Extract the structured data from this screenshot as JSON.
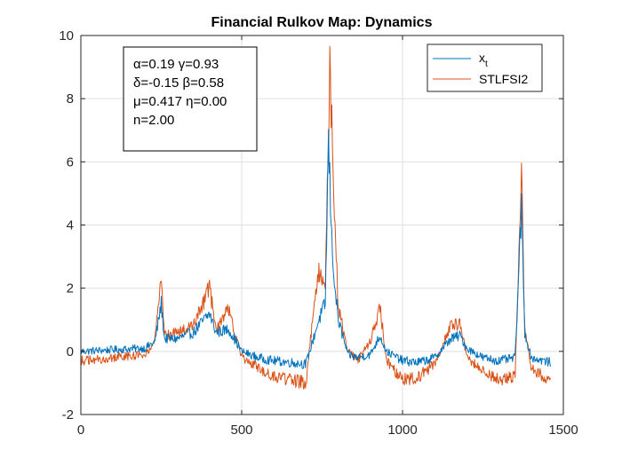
{
  "chart_data": {
    "type": "line",
    "title": "Financial Rulkov Map: Dynamics",
    "xlabel": "",
    "ylabel": "",
    "xlim": [
      0,
      1500
    ],
    "ylim": [
      -2,
      10
    ],
    "xticks": [
      0,
      500,
      1000,
      1500
    ],
    "yticks": [
      -2,
      0,
      2,
      4,
      6,
      8,
      10
    ],
    "grid": true,
    "legend_position": "top-right",
    "annotation_lines": [
      "α=0.19 γ=0.93",
      "δ=-0.15 β=0.58",
      "μ=0.417 η=0.00",
      "n=2.00"
    ],
    "series": [
      {
        "name": "x_t",
        "legend_label": "x",
        "legend_subscript": "t",
        "color": "#0072BD",
        "anchors": [
          [
            0,
            0.0
          ],
          [
            100,
            0.05
          ],
          [
            200,
            0.1
          ],
          [
            230,
            0.3
          ],
          [
            250,
            1.5
          ],
          [
            260,
            0.4
          ],
          [
            300,
            0.4
          ],
          [
            350,
            0.6
          ],
          [
            400,
            1.2
          ],
          [
            420,
            0.6
          ],
          [
            460,
            0.7
          ],
          [
            500,
            0.0
          ],
          [
            550,
            -0.2
          ],
          [
            600,
            -0.3
          ],
          [
            650,
            -0.35
          ],
          [
            700,
            -0.4
          ],
          [
            720,
            0.3
          ],
          [
            740,
            1.0
          ],
          [
            760,
            1.5
          ],
          [
            770,
            6.7
          ],
          [
            780,
            3.5
          ],
          [
            790,
            2.0
          ],
          [
            800,
            1.0
          ],
          [
            830,
            -0.1
          ],
          [
            860,
            -0.2
          ],
          [
            900,
            -0.1
          ],
          [
            930,
            0.5
          ],
          [
            950,
            0.0
          ],
          [
            1000,
            -0.3
          ],
          [
            1050,
            -0.35
          ],
          [
            1100,
            -0.2
          ],
          [
            1150,
            0.4
          ],
          [
            1180,
            0.5
          ],
          [
            1200,
            0.1
          ],
          [
            1250,
            -0.2
          ],
          [
            1300,
            -0.3
          ],
          [
            1350,
            -0.2
          ],
          [
            1370,
            4.5
          ],
          [
            1380,
            0.6
          ],
          [
            1400,
            -0.2
          ],
          [
            1460,
            -0.35
          ]
        ]
      },
      {
        "name": "STLFSI2",
        "legend_label": "STLFSI2",
        "color": "#D95319",
        "anchors": [
          [
            0,
            -0.3
          ],
          [
            100,
            -0.2
          ],
          [
            200,
            -0.1
          ],
          [
            230,
            0.3
          ],
          [
            250,
            2.3
          ],
          [
            260,
            0.5
          ],
          [
            300,
            0.6
          ],
          [
            350,
            0.8
          ],
          [
            400,
            2.0
          ],
          [
            420,
            0.7
          ],
          [
            460,
            1.3
          ],
          [
            500,
            -0.2
          ],
          [
            550,
            -0.5
          ],
          [
            600,
            -0.8
          ],
          [
            650,
            -0.9
          ],
          [
            700,
            -1.0
          ],
          [
            720,
            1.0
          ],
          [
            740,
            2.5
          ],
          [
            760,
            2.0
          ],
          [
            775,
            9.2
          ],
          [
            785,
            5.0
          ],
          [
            800,
            1.5
          ],
          [
            830,
            0.0
          ],
          [
            860,
            -0.3
          ],
          [
            900,
            0.3
          ],
          [
            930,
            1.4
          ],
          [
            950,
            -0.3
          ],
          [
            1000,
            -0.9
          ],
          [
            1050,
            -0.8
          ],
          [
            1100,
            -0.4
          ],
          [
            1150,
            0.8
          ],
          [
            1180,
            0.9
          ],
          [
            1200,
            -0.2
          ],
          [
            1250,
            -0.6
          ],
          [
            1300,
            -0.9
          ],
          [
            1350,
            -0.8
          ],
          [
            1370,
            5.4
          ],
          [
            1380,
            0.8
          ],
          [
            1400,
            -0.5
          ],
          [
            1460,
            -1.0
          ]
        ]
      }
    ]
  }
}
